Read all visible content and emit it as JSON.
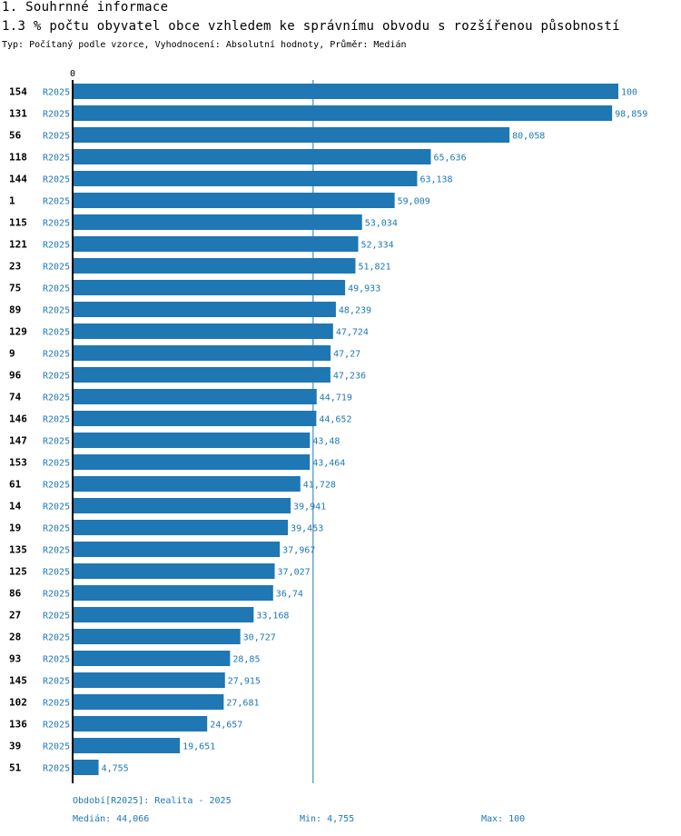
{
  "header": {
    "section": "1. Souhrnné informace",
    "title": "1.3 % počtu obyvatel obce vzhledem ke správnímu obvodu s rozšířenou působností",
    "subtitle": "Typ: Počítaný podle vzorce, Vyhodnocení: Absolutní hodnoty, Průměr: Medián"
  },
  "colors": {
    "bar": "#1f77b4",
    "label": "#1f77b4",
    "axis": "#000000",
    "median_line": "#1f77b4"
  },
  "chart_data": {
    "type": "bar",
    "orientation": "horizontal",
    "axis_zero_label": "0",
    "xlim": [
      0,
      100
    ],
    "median_value": 44.066,
    "period_label": "R2025",
    "categories": [
      "154",
      "131",
      "56",
      "118",
      "144",
      "1",
      "115",
      "121",
      "23",
      "75",
      "89",
      "129",
      "9",
      "96",
      "74",
      "146",
      "147",
      "153",
      "61",
      "14",
      "19",
      "135",
      "125",
      "86",
      "27",
      "28",
      "93",
      "145",
      "102",
      "136",
      "39",
      "51"
    ],
    "values": [
      100,
      98.859,
      80.058,
      65.636,
      63.138,
      59.009,
      53.034,
      52.334,
      51.821,
      49.933,
      48.239,
      47.724,
      47.27,
      47.236,
      44.719,
      44.652,
      43.48,
      43.464,
      41.728,
      39.941,
      39.453,
      37.967,
      37.027,
      36.74,
      33.168,
      30.727,
      28.85,
      27.915,
      27.681,
      24.657,
      19.651,
      4.755
    ],
    "value_labels": [
      "100",
      "98,859",
      "80,058",
      "65,636",
      "63,138",
      "59,009",
      "53,034",
      "52,334",
      "51,821",
      "49,933",
      "48,239",
      "47,724",
      "47,27",
      "47,236",
      "44,719",
      "44,652",
      "43,48",
      "43,464",
      "41,728",
      "39,941",
      "39,453",
      "37,967",
      "37,027",
      "36,74",
      "33,168",
      "30,727",
      "28,85",
      "27,915",
      "27,681",
      "24,657",
      "19,651",
      "4,755"
    ]
  },
  "footer": {
    "period": "Období[R2025]: Realita - 2025",
    "median": "Medián: 44,066",
    "min": "Min: 4,755",
    "max": "Max: 100"
  }
}
